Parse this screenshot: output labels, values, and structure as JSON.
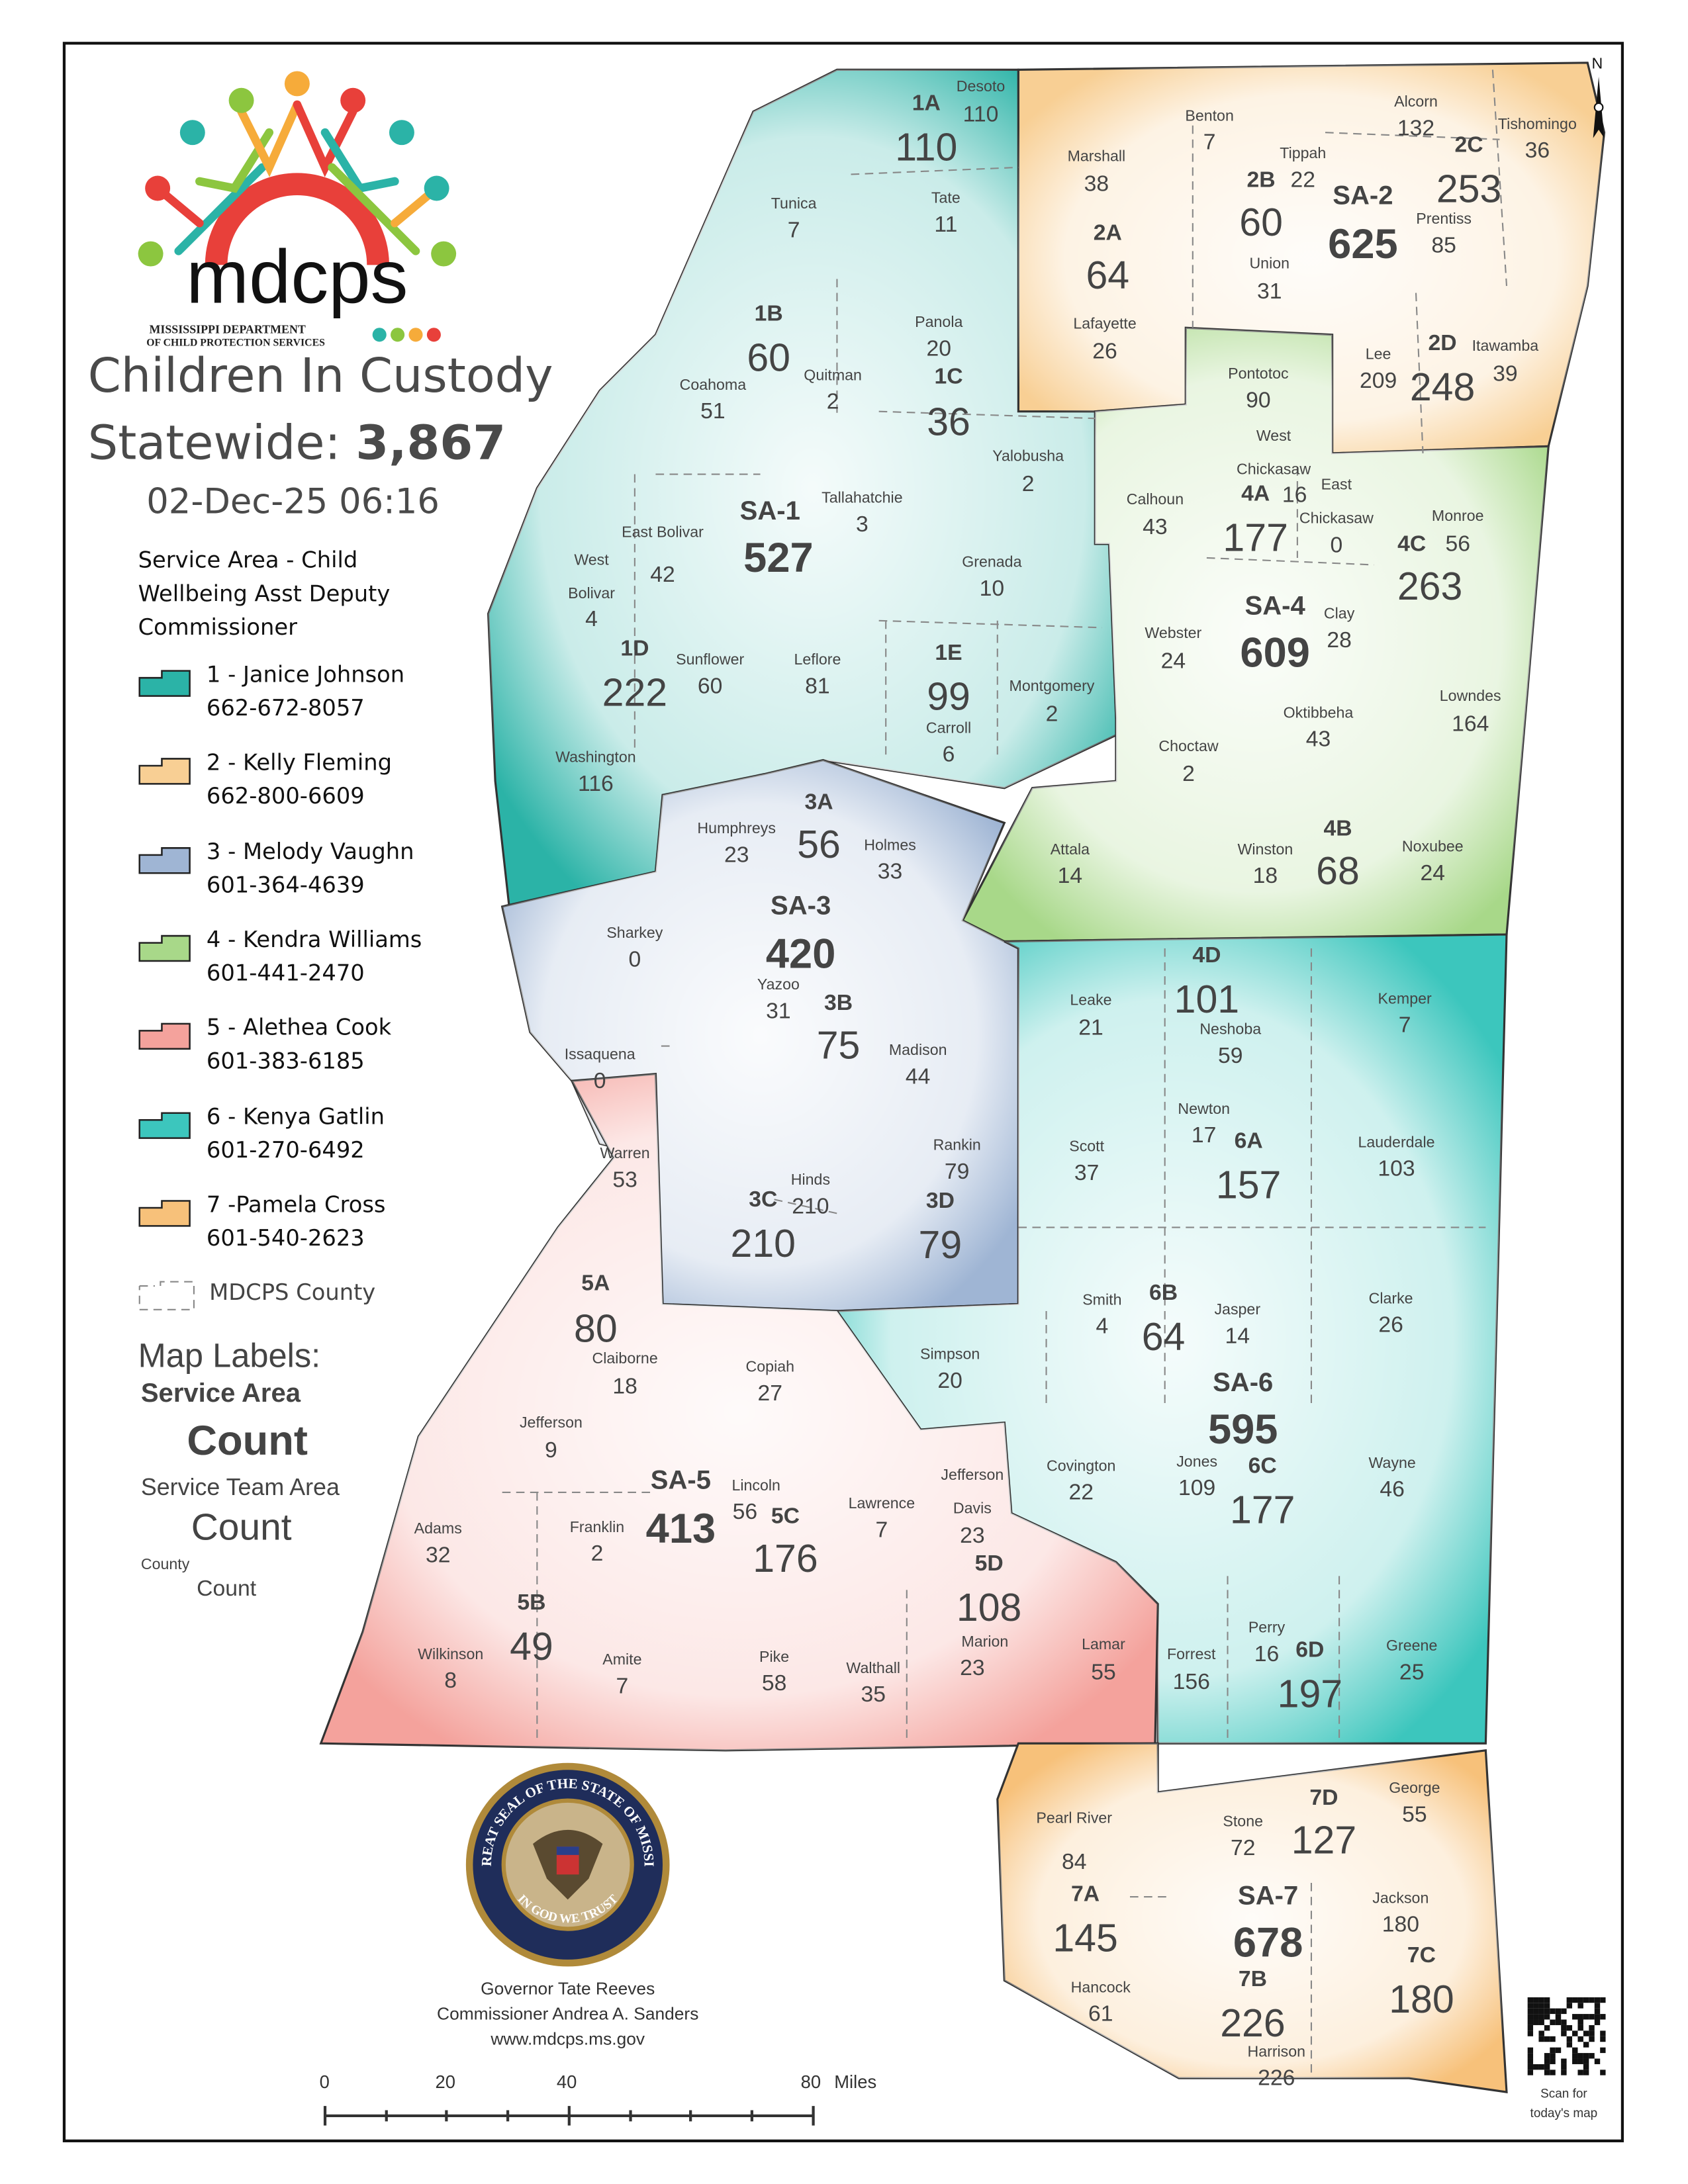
{
  "title": {
    "line1": "Children In Custody",
    "statewide_label": "Statewide: ",
    "statewide_total": "3,867",
    "timestamp": "02-Dec-25 06:16"
  },
  "logo": {
    "wordmark": "mdcps",
    "sub1": "MISSISSIPPI DEPARTMENT",
    "sub2": "OF CHILD PROTECTION SERVICES"
  },
  "legend": {
    "heading": "Service Area - Child Wellbeing Asst Deputy Commissioner",
    "items": [
      {
        "label": "1 - Janice Johnson",
        "phone": "662-672-8057",
        "color": "#2bb3a7"
      },
      {
        "label": "2 - Kelly Fleming",
        "phone": "662-800-6609",
        "color": "#f8cf94"
      },
      {
        "label": "3 - Melody Vaughn",
        "phone": "601-364-4639",
        "color": "#9fb5d4"
      },
      {
        "label": "4 - Kendra Williams",
        "phone": "601-441-2470",
        "color": "#a8d889"
      },
      {
        "label": "5 - Alethea Cook",
        "phone": "601-383-6185",
        "color": "#f4a29c"
      },
      {
        "label": "6 - Kenya Gatlin",
        "phone": "601-270-6492",
        "color": "#3cc6bd"
      },
      {
        "label": "7 -Pamela Cross",
        "phone": "601-540-2623",
        "color": "#f7c17a"
      }
    ],
    "county_label": "MDCPS County"
  },
  "map_labels_key": {
    "heading": "Map Labels:",
    "service_area": "Service Area",
    "service_area_count": "Count",
    "team_area": "Service Team Area",
    "team_area_count": "Count",
    "county": "County",
    "county_count": "Count"
  },
  "service_areas": [
    {
      "code": "SA-1",
      "count": "527"
    },
    {
      "code": "SA-2",
      "count": "625"
    },
    {
      "code": "SA-3",
      "count": "420"
    },
    {
      "code": "SA-4",
      "count": "609"
    },
    {
      "code": "SA-5",
      "count": "413"
    },
    {
      "code": "SA-6",
      "count": "595"
    },
    {
      "code": "SA-7",
      "count": "678"
    }
  ],
  "team_areas": [
    {
      "code": "1A",
      "count": "110"
    },
    {
      "code": "1B",
      "count": "60"
    },
    {
      "code": "1C",
      "count": "36"
    },
    {
      "code": "1D",
      "count": "222"
    },
    {
      "code": "1E",
      "count": "99"
    },
    {
      "code": "2A",
      "count": "64"
    },
    {
      "code": "2B",
      "count": "60"
    },
    {
      "code": "2C",
      "count": "253"
    },
    {
      "code": "2D",
      "count": "248"
    },
    {
      "code": "3A",
      "count": "56"
    },
    {
      "code": "3B",
      "count": "75"
    },
    {
      "code": "3C",
      "count": "210"
    },
    {
      "code": "3D",
      "count": "79"
    },
    {
      "code": "4A",
      "count": "177"
    },
    {
      "code": "4B",
      "count": "68"
    },
    {
      "code": "4C",
      "count": "263"
    },
    {
      "code": "4D",
      "count": "101"
    },
    {
      "code": "5A",
      "count": "80"
    },
    {
      "code": "5B",
      "count": "49"
    },
    {
      "code": "5C",
      "count": "176"
    },
    {
      "code": "5D",
      "count": "108"
    },
    {
      "code": "6A",
      "count": "157"
    },
    {
      "code": "6B",
      "count": "64"
    },
    {
      "code": "6C",
      "count": "177"
    },
    {
      "code": "6D",
      "count": "197"
    },
    {
      "code": "7A",
      "count": "145"
    },
    {
      "code": "7B",
      "count": "226"
    },
    {
      "code": "7C",
      "count": "180"
    },
    {
      "code": "7D",
      "count": "127"
    }
  ],
  "counties": [
    {
      "name": "Desoto",
      "count": "110"
    },
    {
      "name": "Tunica",
      "count": "7"
    },
    {
      "name": "Tate",
      "count": "11"
    },
    {
      "name": "Coahoma",
      "count": "51"
    },
    {
      "name": "Quitman",
      "count": "2"
    },
    {
      "name": "Panola",
      "count": "20"
    },
    {
      "name": "Yalobusha",
      "count": "2"
    },
    {
      "name": "Tallahatchie",
      "count": "3"
    },
    {
      "name": "East Bolivar",
      "count": "42"
    },
    {
      "name": "West Bolivar",
      "count": "4"
    },
    {
      "name": "Sunflower",
      "count": "60"
    },
    {
      "name": "Leflore",
      "count": "81"
    },
    {
      "name": "Grenada",
      "count": "10"
    },
    {
      "name": "Washington",
      "count": "116"
    },
    {
      "name": "Carroll",
      "count": "6"
    },
    {
      "name": "Montgomery",
      "count": "2"
    },
    {
      "name": "Humphreys",
      "count": "23"
    },
    {
      "name": "Holmes",
      "count": "33"
    },
    {
      "name": "Sharkey",
      "count": "0"
    },
    {
      "name": "Yazoo",
      "count": "31"
    },
    {
      "name": "Madison",
      "count": "44"
    },
    {
      "name": "Issaquena",
      "count": "0"
    },
    {
      "name": "Rankin",
      "count": "79"
    },
    {
      "name": "Hinds",
      "count": "210"
    },
    {
      "name": "Warren",
      "count": "53"
    },
    {
      "name": "Marshall",
      "count": "38"
    },
    {
      "name": "Benton",
      "count": "7"
    },
    {
      "name": "Tippah",
      "count": "22"
    },
    {
      "name": "Alcorn",
      "count": "132"
    },
    {
      "name": "Tishomingo",
      "count": "36"
    },
    {
      "name": "Prentiss",
      "count": "85"
    },
    {
      "name": "Union",
      "count": "31"
    },
    {
      "name": "Lafayette",
      "count": "26"
    },
    {
      "name": "Lee",
      "count": "209"
    },
    {
      "name": "Itawamba",
      "count": "39"
    },
    {
      "name": "Pontotoc",
      "count": "90"
    },
    {
      "name": "West Chickasaw",
      "count": "16"
    },
    {
      "name": "Calhoun",
      "count": "43"
    },
    {
      "name": "East Chickasaw",
      "count": "0"
    },
    {
      "name": "Monroe",
      "count": "56"
    },
    {
      "name": "Webster",
      "count": "24"
    },
    {
      "name": "Clay",
      "count": "28"
    },
    {
      "name": "Oktibbeha",
      "count": "43"
    },
    {
      "name": "Lowndes",
      "count": "164"
    },
    {
      "name": "Choctaw",
      "count": "2"
    },
    {
      "name": "Attala",
      "count": "14"
    },
    {
      "name": "Winston",
      "count": "18"
    },
    {
      "name": "Noxubee",
      "count": "24"
    },
    {
      "name": "Leake",
      "count": "21"
    },
    {
      "name": "Neshoba",
      "count": "59"
    },
    {
      "name": "Kemper",
      "count": "7"
    },
    {
      "name": "Scott",
      "count": "37"
    },
    {
      "name": "Newton",
      "count": "17"
    },
    {
      "name": "Lauderdale",
      "count": "103"
    },
    {
      "name": "Smith",
      "count": "4"
    },
    {
      "name": "Jasper",
      "count": "14"
    },
    {
      "name": "Clarke",
      "count": "26"
    },
    {
      "name": "Simpson",
      "count": "20"
    },
    {
      "name": "Copiah",
      "count": "27"
    },
    {
      "name": "Claiborne",
      "count": "18"
    },
    {
      "name": "Jefferson",
      "count": "9"
    },
    {
      "name": "Covington",
      "count": "22"
    },
    {
      "name": "Jones",
      "count": "109"
    },
    {
      "name": "Wayne",
      "count": "46"
    },
    {
      "name": "Jefferson Davis",
      "count": "23"
    },
    {
      "name": "Lincoln",
      "count": "56"
    },
    {
      "name": "Lawrence",
      "count": "7"
    },
    {
      "name": "Adams",
      "count": "32"
    },
    {
      "name": "Franklin",
      "count": "2"
    },
    {
      "name": "Marion",
      "count": "23"
    },
    {
      "name": "Lamar",
      "count": "55"
    },
    {
      "name": "Forrest",
      "count": "156"
    },
    {
      "name": "Perry",
      "count": "16"
    },
    {
      "name": "Greene",
      "count": "25"
    },
    {
      "name": "Wilkinson",
      "count": "8"
    },
    {
      "name": "Amite",
      "count": "7"
    },
    {
      "name": "Pike",
      "count": "58"
    },
    {
      "name": "Walthall",
      "count": "35"
    },
    {
      "name": "George",
      "count": "55"
    },
    {
      "name": "Stone",
      "count": "72"
    },
    {
      "name": "Pearl River",
      "count": "84"
    },
    {
      "name": "Jackson",
      "count": "180"
    },
    {
      "name": "Hancock",
      "count": "61"
    },
    {
      "name": "Harrison",
      "count": "226"
    }
  ],
  "seal": {
    "top_text": "THE GREAT SEAL OF THE STATE OF MISSISSIPPI",
    "bottom_text": "IN GOD WE TRUST"
  },
  "footer": {
    "governor": "Governor Tate Reeves",
    "commissioner": "Commissioner Andrea A. Sanders",
    "website": "www.mdcps.ms.gov"
  },
  "scale_bar": {
    "ticks": [
      "0",
      "20",
      "40",
      "80"
    ],
    "unit": "Miles"
  },
  "north_label": "N",
  "qr_caption": {
    "line1": "Scan for",
    "line2": "today's map"
  }
}
